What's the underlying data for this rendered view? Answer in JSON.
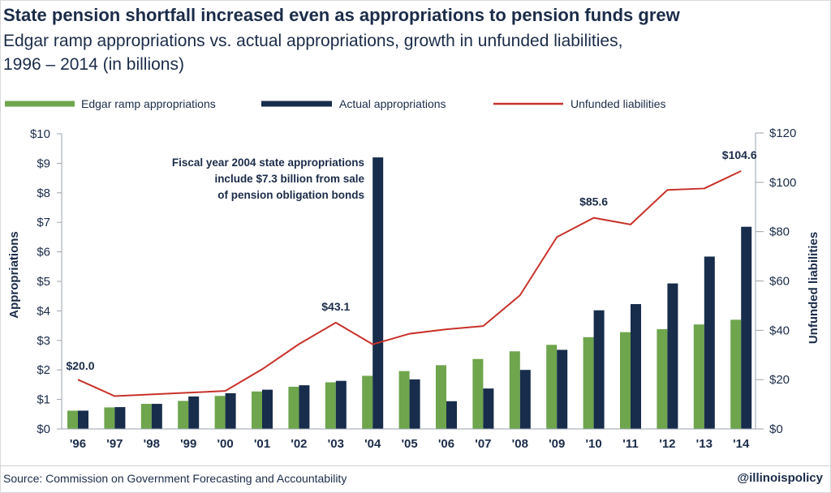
{
  "header": {
    "title": "State pension shortfall increased even as appropriations to pension funds grew",
    "subtitle_line1": "Edgar ramp appropriations vs. actual appropriations, growth in unfunded liabilities,",
    "subtitle_line2": "1996 – 2014 (in billions)"
  },
  "footer": {
    "source": "Source: Commission on Government Forecasting and Accountability",
    "handle": "@illinoispolicy"
  },
  "colors": {
    "edgar": "#6ea54d",
    "actual": "#172d4b",
    "unfunded": "#c8322b",
    "text": "#1b2c49"
  },
  "chart_data": {
    "type": "bar",
    "categories": [
      "'96",
      "'97",
      "'98",
      "'99",
      "'00",
      "'01",
      "'02",
      "'03",
      "'04",
      "'05",
      "'06",
      "'07",
      "'08",
      "'09",
      "'10",
      "'11",
      "'12",
      "'13",
      "'14"
    ],
    "series": [
      {
        "name": "Edgar ramp appropriations",
        "type": "bar",
        "axis": "left",
        "color": "#6ea54d",
        "values": [
          0.62,
          0.73,
          0.85,
          0.95,
          1.12,
          1.27,
          1.43,
          1.58,
          1.8,
          1.96,
          2.16,
          2.37,
          2.63,
          2.85,
          3.11,
          3.28,
          3.38,
          3.54,
          3.7
        ]
      },
      {
        "name": "Actual appropriations",
        "type": "bar",
        "axis": "left",
        "color": "#172d4b",
        "values": [
          0.62,
          0.74,
          0.85,
          1.1,
          1.21,
          1.33,
          1.48,
          1.63,
          9.2,
          1.68,
          0.94,
          1.37,
          2.0,
          2.68,
          4.02,
          4.23,
          4.93,
          5.84,
          6.85
        ]
      },
      {
        "name": "Unfunded liabilities",
        "type": "line",
        "axis": "right",
        "color": "#c8322b",
        "values": [
          20.0,
          13.3,
          14.0,
          14.7,
          15.4,
          24.2,
          34.4,
          43.1,
          34.3,
          38.6,
          40.4,
          41.7,
          54.2,
          77.8,
          85.6,
          82.9,
          96.9,
          97.5,
          104.6
        ]
      }
    ],
    "left_axis": {
      "title": "Appropriations",
      "min": 0,
      "max": 10,
      "tick_labels": [
        "$0",
        "$1",
        "$2",
        "$3",
        "$4",
        "$5",
        "$6",
        "$7",
        "$8",
        "$9",
        "$10"
      ]
    },
    "right_axis": {
      "title": "Unfunded liabilities",
      "min": 0,
      "max": 120,
      "tick_labels": [
        "$0",
        "$20",
        "$40",
        "$60",
        "$80",
        "$100",
        "$120"
      ]
    },
    "data_labels": [
      {
        "index": 0,
        "text": "$20.0"
      },
      {
        "index": 7,
        "text": "$43.1"
      },
      {
        "index": 14,
        "text": "$85.6"
      },
      {
        "index": 18,
        "text": "$104.6"
      }
    ],
    "annotation": {
      "lines": [
        "Fiscal year 2004 state appropriations",
        "include $7.3 billion from sale",
        "of pension obligation bonds"
      ]
    },
    "legend_position": "top",
    "grid": false
  }
}
